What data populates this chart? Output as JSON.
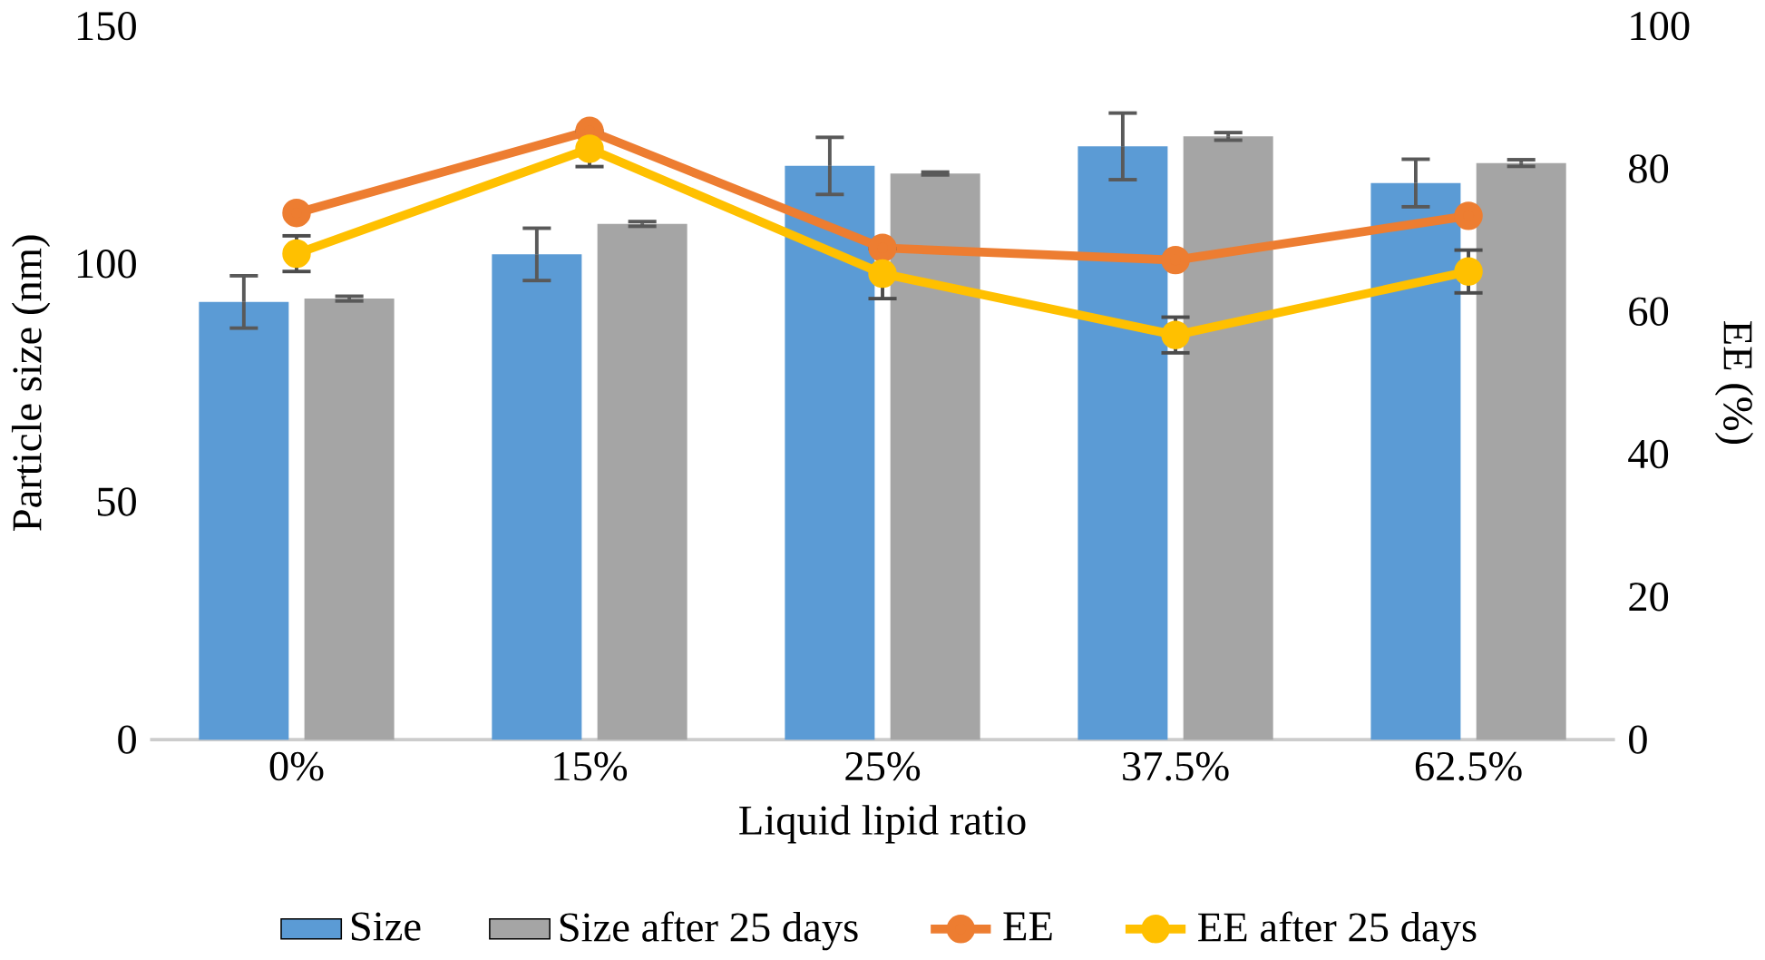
{
  "chart_data": {
    "type": "bar",
    "xlabel": "Liquid lipid ratio",
    "ylabel": "Particle size (nm)",
    "y2label": "EE (%)",
    "categories": [
      "0%",
      "15%",
      "25%",
      "37.5%",
      "62.5%"
    ],
    "series": [
      {
        "name": "Size",
        "color": "#5b9bd5",
        "values": [
          92,
          102,
          120.6,
          124.7,
          117
        ],
        "errors": [
          5.5,
          5.5,
          6,
          7,
          5
        ]
      },
      {
        "name": "Size after 25 days",
        "color": "#a5a5a5",
        "values": [
          92.7,
          108.4,
          119,
          126.8,
          121.2
        ],
        "errors": [
          0.5,
          0.5,
          0.3,
          0.8,
          0.7
        ]
      },
      {
        "name": "EE",
        "type": "line",
        "axis": "y2",
        "color": "#ed7d31",
        "values": [
          73.8,
          85.3,
          68.9,
          67.2,
          73.4
        ]
      },
      {
        "name": "EE after 25 days",
        "type": "line",
        "axis": "y2",
        "color": "#ffc000",
        "values": [
          68.1,
          82.8,
          65.3,
          56.7,
          65.6
        ],
        "errors": [
          2.5,
          2.5,
          3.5,
          2.5,
          3
        ]
      }
    ],
    "ylim": [
      0,
      150
    ],
    "yticks": [
      0,
      50,
      100,
      150
    ],
    "y2lim": [
      0,
      100
    ],
    "y2ticks": [
      0,
      20,
      40,
      60,
      80,
      100
    ],
    "marker": "circle",
    "legend": "bottom",
    "grid": false
  }
}
